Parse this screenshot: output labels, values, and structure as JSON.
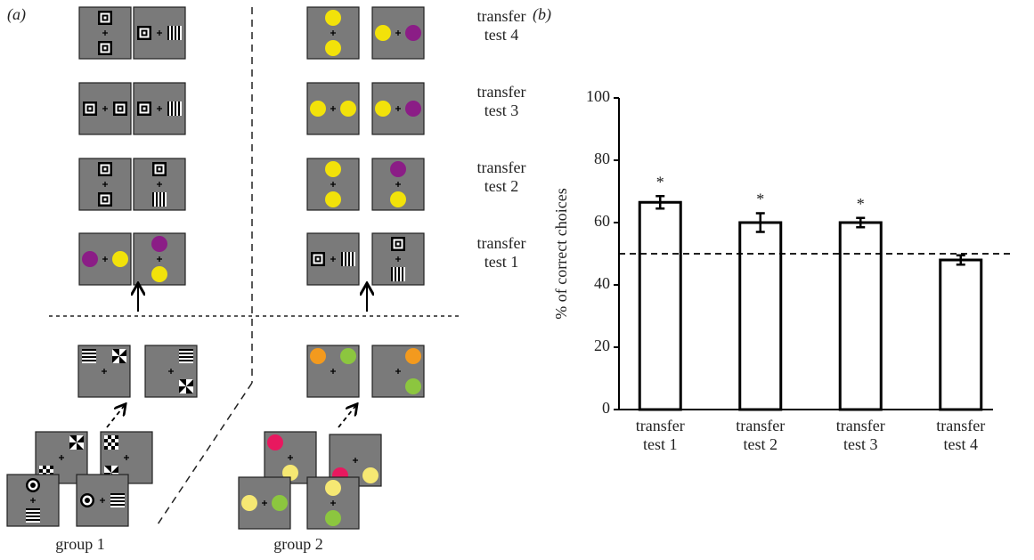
{
  "panel_labels": [
    "(a)",
    "(b)"
  ],
  "diagram": {
    "transfer_labels": [
      "transfer test 4",
      "transfer test 3",
      "transfer test 2",
      "transfer test 1"
    ],
    "groups": [
      "group 1",
      "group 2"
    ]
  },
  "chart_data": {
    "type": "bar",
    "ylabel": "% of correct choices",
    "categories": [
      "transfer test 1",
      "transfer test 2",
      "transfer test 3",
      "transfer test 4"
    ],
    "values": [
      66.5,
      60,
      60,
      48
    ],
    "errors": [
      2,
      3,
      1.5,
      1.5
    ],
    "annotations": [
      "*",
      "*",
      "*",
      null
    ],
    "reference_line": 50,
    "color": "#ffffff",
    "ylim": [
      0,
      100
    ],
    "yticks": [
      0,
      20,
      40,
      60,
      80,
      100
    ]
  }
}
